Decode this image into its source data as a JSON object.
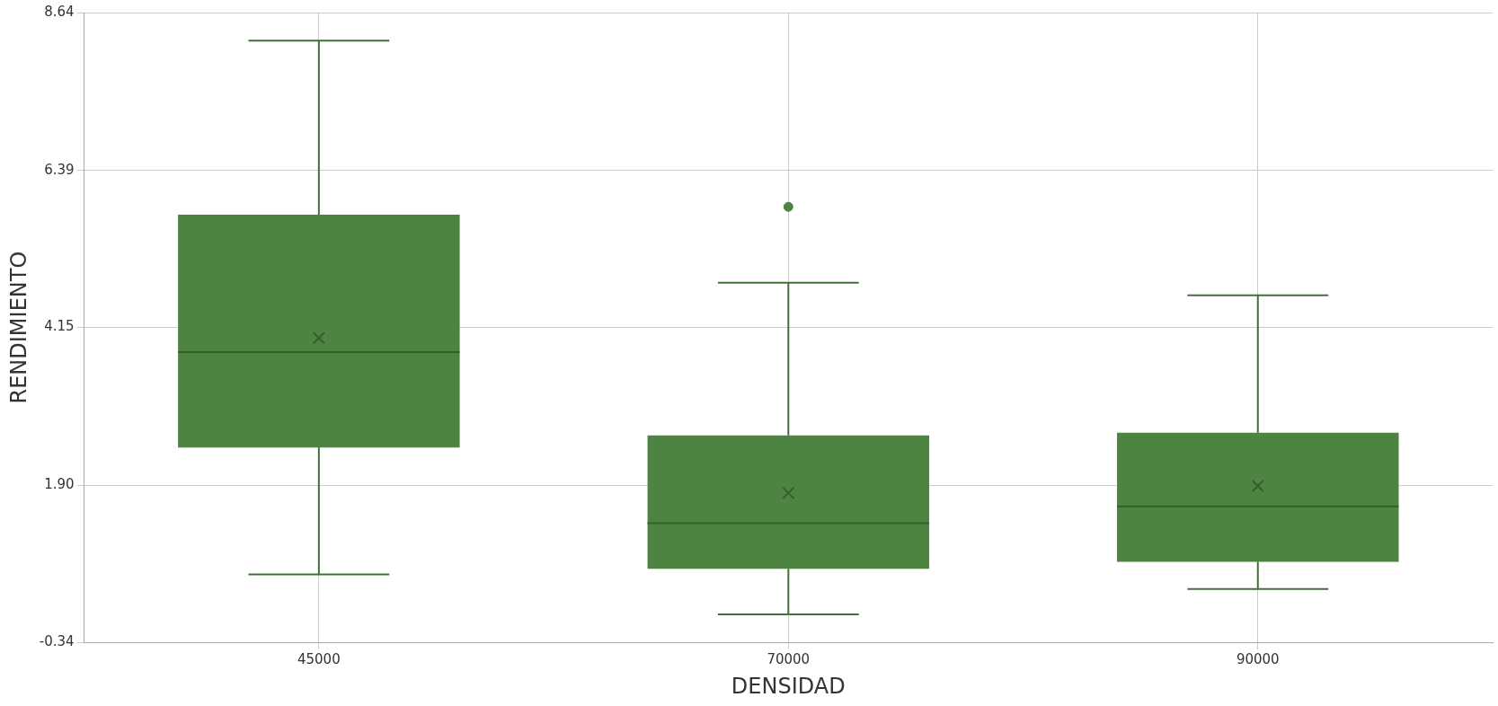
{
  "chart_data": {
    "type": "box",
    "xlabel": "DENSIDAD",
    "ylabel": "RENDIMIENTO",
    "categories": [
      "45000",
      "70000",
      "90000"
    ],
    "color": "#4e8442",
    "boxes": [
      {
        "low": 0.63,
        "q1": 2.44,
        "median": 3.8,
        "q3": 5.76,
        "high": 8.24,
        "mean": 4.0
      },
      {
        "low": 0.06,
        "q1": 0.71,
        "median": 1.36,
        "q3": 2.61,
        "high": 4.79,
        "mean": 1.79,
        "outliers": [
          5.87
        ]
      },
      {
        "low": 0.42,
        "q1": 0.81,
        "median": 1.6,
        "q3": 2.65,
        "high": 4.61,
        "mean": 1.89
      }
    ],
    "ylim": [
      -0.34,
      8.64
    ],
    "yticks": [
      -0.34,
      {
        "value": 1.9,
        "label": "1.90"
      },
      4.15,
      6.39,
      8.64
    ],
    "grid": true,
    "legend": false
  }
}
